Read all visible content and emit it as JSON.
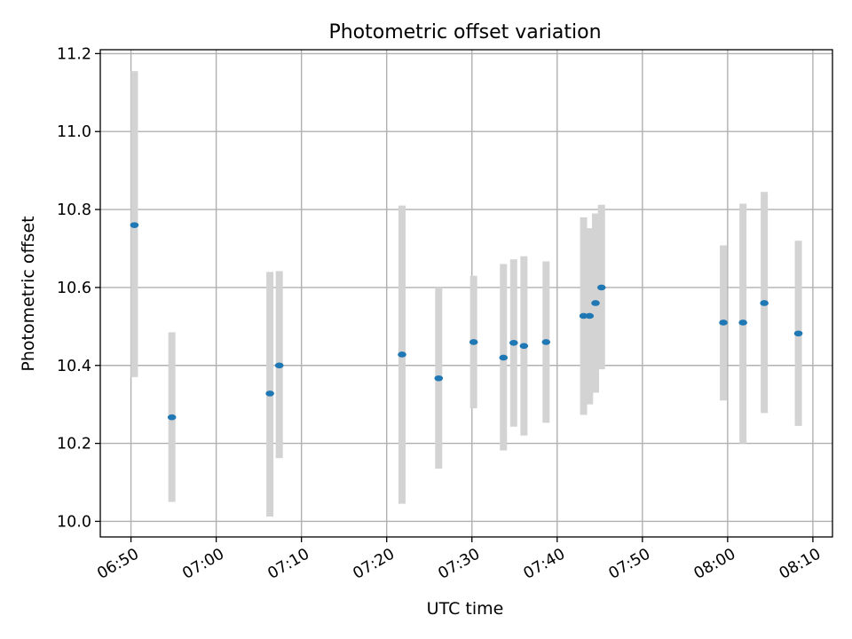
{
  "chart_data": {
    "type": "scatter",
    "title": "Photometric offset variation",
    "xlabel": "UTC time",
    "ylabel": "Photometric offset",
    "x_unit": "UTC clock time (HH:MM)",
    "xlim": [
      "06:46:24",
      "08:12:18"
    ],
    "ylim": [
      9.96,
      11.21
    ],
    "xticks": [
      "06:50",
      "07:00",
      "07:10",
      "07:20",
      "07:30",
      "07:40",
      "07:50",
      "08:00",
      "08:10"
    ],
    "yticks": [
      "10.0",
      "10.2",
      "10.4",
      "10.6",
      "10.8",
      "11.0",
      "11.2"
    ],
    "grid": true,
    "colors": {
      "point": "#1f77b4",
      "errorbar": "#d3d3d3",
      "grid": "#b0b0b0"
    },
    "points": [
      {
        "t": "06:50:24",
        "y": 10.76,
        "lo": 10.37,
        "hi": 11.155
      },
      {
        "t": "06:54:48",
        "y": 10.267,
        "lo": 10.05,
        "hi": 10.485
      },
      {
        "t": "07:06:18",
        "y": 10.328,
        "lo": 10.012,
        "hi": 10.64
      },
      {
        "t": "07:07:24",
        "y": 10.4,
        "lo": 10.162,
        "hi": 10.642
      },
      {
        "t": "07:21:48",
        "y": 10.428,
        "lo": 10.045,
        "hi": 10.81
      },
      {
        "t": "07:26:06",
        "y": 10.367,
        "lo": 10.135,
        "hi": 10.6
      },
      {
        "t": "07:30:12",
        "y": 10.46,
        "lo": 10.29,
        "hi": 10.63
      },
      {
        "t": "07:33:42",
        "y": 10.42,
        "lo": 10.182,
        "hi": 10.66
      },
      {
        "t": "07:34:54",
        "y": 10.458,
        "lo": 10.243,
        "hi": 10.672
      },
      {
        "t": "07:36:06",
        "y": 10.45,
        "lo": 10.22,
        "hi": 10.68
      },
      {
        "t": "07:38:42",
        "y": 10.46,
        "lo": 10.253,
        "hi": 10.667
      },
      {
        "t": "07:43:06",
        "y": 10.527,
        "lo": 10.273,
        "hi": 10.78
      },
      {
        "t": "07:43:48",
        "y": 10.527,
        "lo": 10.3,
        "hi": 10.752
      },
      {
        "t": "07:44:30",
        "y": 10.56,
        "lo": 10.33,
        "hi": 10.79
      },
      {
        "t": "07:45:12",
        "y": 10.6,
        "lo": 10.39,
        "hi": 10.812
      },
      {
        "t": "07:59:30",
        "y": 10.51,
        "lo": 10.31,
        "hi": 10.708
      },
      {
        "t": "08:01:48",
        "y": 10.51,
        "lo": 10.2,
        "hi": 10.815
      },
      {
        "t": "08:04:18",
        "y": 10.56,
        "lo": 10.278,
        "hi": 10.845
      },
      {
        "t": "08:08:18",
        "y": 10.482,
        "lo": 10.245,
        "hi": 10.72
      }
    ]
  }
}
